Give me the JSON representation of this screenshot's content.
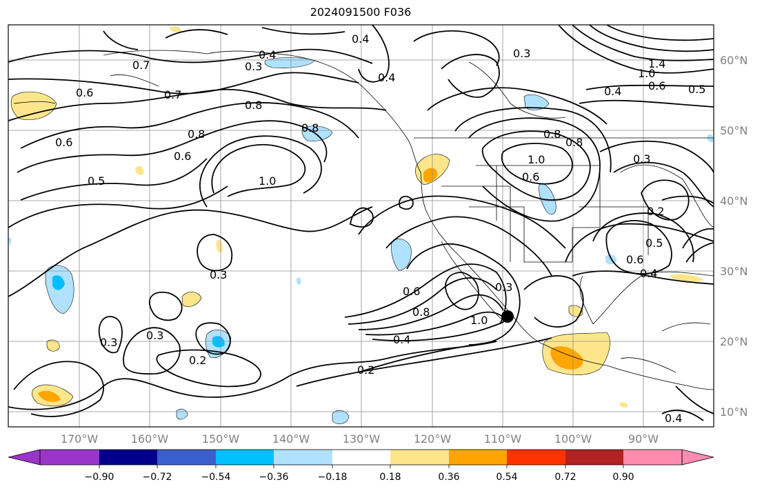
{
  "title": "2024091500 F036",
  "map": {
    "lat_labels": [
      "60°N",
      "50°N",
      "40°N",
      "30°N",
      "20°N",
      "10°N"
    ],
    "lon_labels": [
      "170°W",
      "160°W",
      "150°W",
      "140°W",
      "130°W",
      "120°W",
      "110°W",
      "100°W",
      "90°W"
    ],
    "contour_labels": [
      "0.6",
      "0.7",
      "0.7",
      "0.8",
      "0.4",
      "0.3",
      "0.4",
      "0.4",
      "0.3",
      "1.4",
      "1.0",
      "0.6",
      "0.5",
      "0.4",
      "0.8",
      "0.8",
      "0.8",
      "0.6",
      "0.6",
      "0.5",
      "1.0",
      "1.0",
      "0.8",
      "0.6",
      "0.3",
      "0.2",
      "0.5",
      "0.6",
      "0.4",
      "0.3",
      "0.3",
      "0.3",
      "0.2",
      "0.6",
      "0.8",
      "1.0",
      "0.3",
      "0.4",
      "0.2",
      "0.4"
    ],
    "marker": "storm-center"
  },
  "colorbar": {
    "ticks": [
      "−0.90",
      "−0.72",
      "−0.54",
      "−0.36",
      "−0.18",
      "0.18",
      "0.36",
      "0.54",
      "0.72",
      "0.90"
    ],
    "colors": [
      "#9b35c9",
      "#00008c",
      "#3a5fcd",
      "#00bfff",
      "#b0e2ff",
      "#ffffff",
      "#fde68a",
      "#ffa500",
      "#ff3300",
      "#b22222",
      "#ff8bb0"
    ]
  }
}
